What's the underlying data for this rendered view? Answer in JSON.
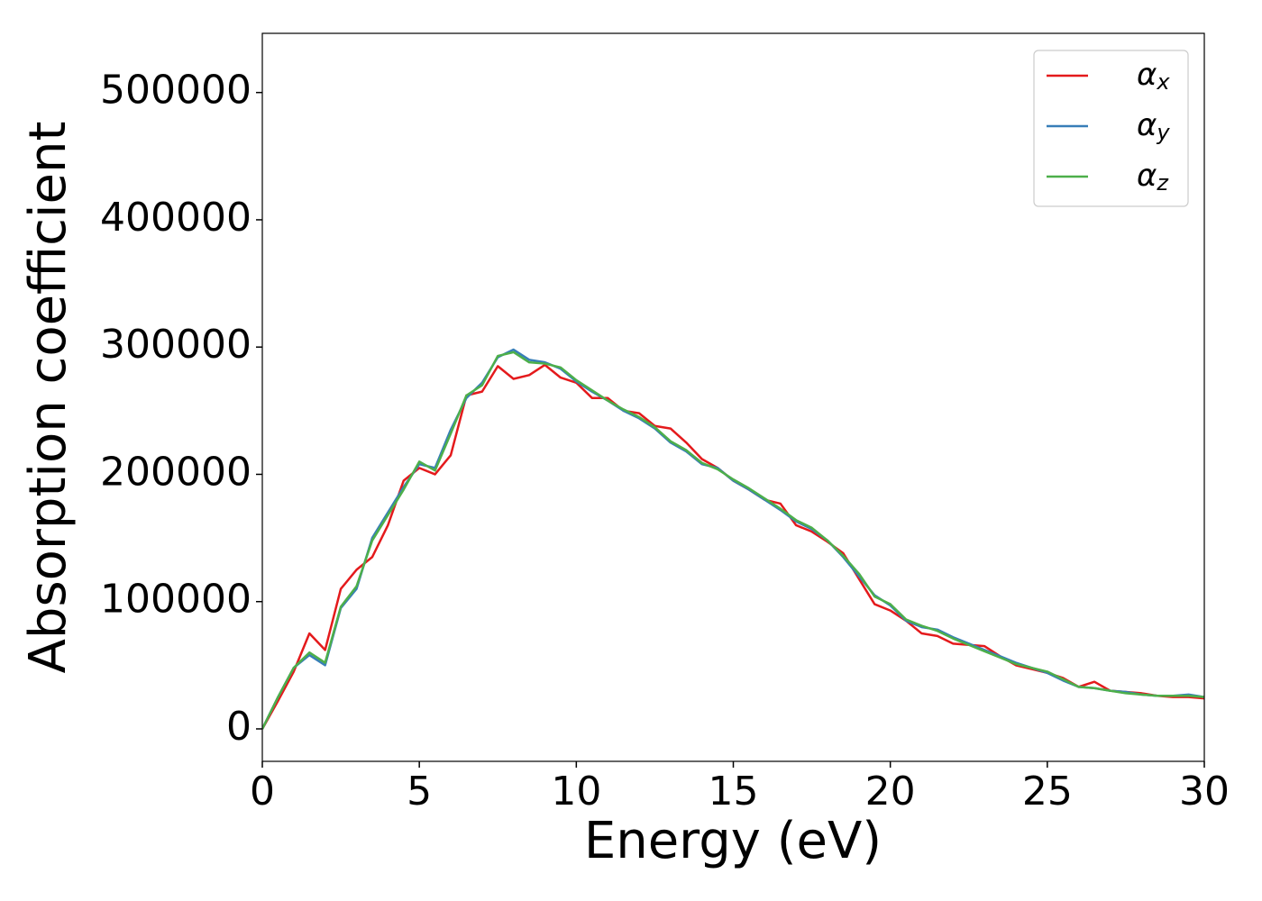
{
  "chart_data": {
    "type": "line",
    "x_label": "Energy (eV)",
    "y_label": "Absorption coefficient",
    "x": [
      0,
      0.5,
      1,
      1.5,
      2,
      2.5,
      3,
      3.5,
      4,
      4.5,
      5,
      5.5,
      6,
      6.5,
      7,
      7.5,
      8,
      8.5,
      9,
      9.5,
      10,
      10.5,
      11,
      11.5,
      12,
      12.5,
      13,
      13.5,
      14,
      14.5,
      15,
      15.5,
      16,
      16.5,
      17,
      17.5,
      18,
      18.5,
      19,
      19.5,
      20,
      20.5,
      21,
      21.5,
      22,
      22.5,
      23,
      23.5,
      24,
      24.5,
      25,
      25.5,
      26,
      26.5,
      27,
      27.5,
      28,
      28.5,
      29,
      29.5,
      30
    ],
    "series": [
      {
        "name": "αx",
        "color": "#e41a1c",
        "values": [
          0,
          22000,
          45000,
          75000,
          62000,
          110000,
          125000,
          135000,
          160000,
          195000,
          205000,
          200000,
          215000,
          262000,
          265000,
          285000,
          275000,
          278000,
          286000,
          276000,
          272000,
          260000,
          260000,
          250000,
          248000,
          238000,
          236000,
          225000,
          212000,
          205000,
          195000,
          188000,
          180000,
          177000,
          160000,
          155000,
          147000,
          138000,
          118000,
          98000,
          93000,
          85000,
          75000,
          73000,
          67000,
          66000,
          65000,
          57000,
          50000,
          47000,
          44000,
          40000,
          33000,
          37000,
          30000,
          29000,
          28000,
          26000,
          25000,
          25000,
          24000
        ]
      },
      {
        "name": "αy",
        "color": "#377eb8",
        "values": [
          0,
          25000,
          48000,
          58000,
          50000,
          95000,
          110000,
          150000,
          170000,
          190000,
          208000,
          205000,
          235000,
          260000,
          272000,
          292000,
          298000,
          290000,
          288000,
          283000,
          273000,
          265000,
          258000,
          250000,
          244000,
          236000,
          225000,
          218000,
          208000,
          205000,
          195000,
          188000,
          180000,
          172000,
          163000,
          157000,
          148000,
          135000,
          120000,
          105000,
          97000,
          85000,
          80000,
          78000,
          72000,
          67000,
          62000,
          57000,
          52000,
          48000,
          44000,
          38000,
          33000,
          32000,
          30000,
          29000,
          27000,
          26000,
          26000,
          27000,
          25000
        ]
      },
      {
        "name": "αz",
        "color": "#4daf4a",
        "values": [
          0,
          25000,
          48000,
          60000,
          52000,
          96000,
          112000,
          148000,
          168000,
          188000,
          210000,
          203000,
          232000,
          262000,
          270000,
          293000,
          296000,
          288000,
          287000,
          284000,
          274000,
          266000,
          258000,
          251000,
          245000,
          237000,
          226000,
          219000,
          209000,
          204000,
          196000,
          189000,
          181000,
          173000,
          164000,
          158000,
          148000,
          136000,
          122000,
          104000,
          98000,
          86000,
          81000,
          77000,
          71000,
          66000,
          61000,
          56000,
          51000,
          48000,
          45000,
          39000,
          33000,
          32000,
          30000,
          28000,
          27000,
          26000,
          26000,
          26000,
          25000
        ]
      }
    ],
    "xlim": [
      0,
      30
    ],
    "ylim": [
      -25500,
      546500
    ],
    "xticks": [
      0,
      5,
      10,
      15,
      20,
      25,
      30
    ],
    "yticks": [
      0,
      100000,
      200000,
      300000,
      400000,
      500000
    ],
    "legend": "upper right"
  }
}
